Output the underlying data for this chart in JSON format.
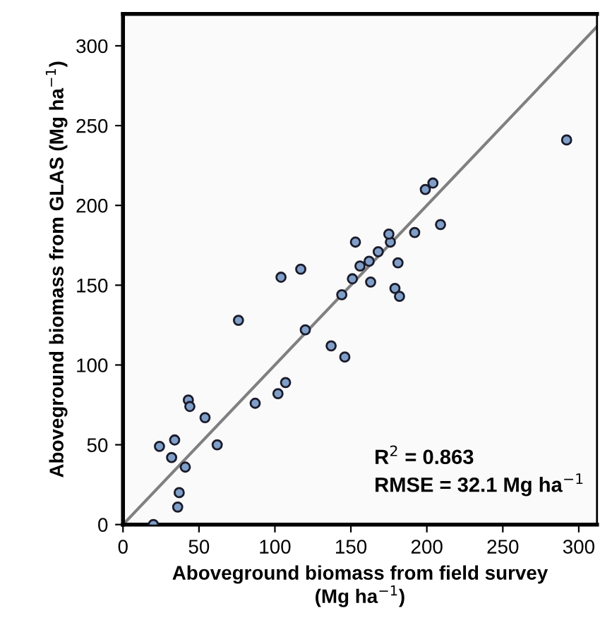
{
  "chart_data": {
    "type": "scatter",
    "xlabel": "Aboveground biomass from field survey\n(Mg ha$^{−1}$)",
    "ylabel": "Aboveground biomass from GLAS (Mg ha$^{−1}$)",
    "xlim": [
      0,
      312
    ],
    "ylim": [
      0,
      320
    ],
    "xticks": [
      0,
      50,
      100,
      150,
      200,
      250,
      300
    ],
    "yticks": [
      0,
      50,
      100,
      150,
      200,
      250,
      300
    ],
    "grid": false,
    "marker": "circle",
    "series": [
      {
        "color": "#7f9fc8",
        "x": [
          20,
          24,
          34,
          32,
          41,
          37,
          36,
          43,
          44,
          54,
          62,
          76,
          87,
          102,
          107,
          104,
          117,
          120,
          137,
          146,
          144,
          151,
          156,
          162,
          163,
          168,
          176,
          181,
          179,
          182,
          153,
          199,
          204,
          209,
          192,
          175,
          292
        ],
        "values": [
          0,
          49,
          53,
          42,
          36,
          20,
          11,
          78,
          74,
          67,
          50,
          128,
          76,
          82,
          89,
          155,
          160,
          122,
          112,
          105,
          144,
          154,
          162,
          165,
          152,
          171,
          177,
          164,
          148,
          143,
          177,
          210,
          214,
          188,
          183,
          182,
          241
        ]
      },
      {
        "type": "line",
        "color": "#808080",
        "marker": "none",
        "x": [
          0,
          312
        ],
        "values": [
          0,
          312
        ]
      }
    ],
    "annotations": [
      "R$^{2}$ = 0.863",
      "RMSE = 32.1 Mg ha$^{−1}$"
    ]
  }
}
